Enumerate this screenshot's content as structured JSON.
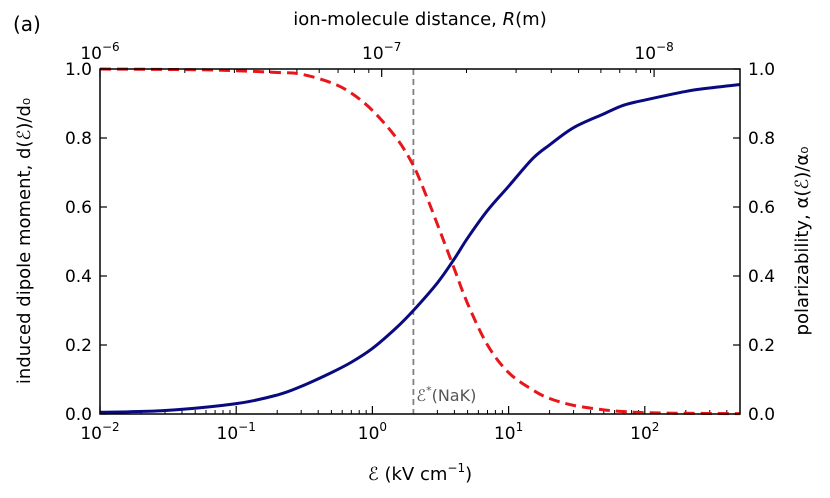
{
  "chart_data": {
    "type": "line",
    "panel_label": "(a)",
    "xscale": "log",
    "xlim": [
      0.01,
      500
    ],
    "xlabel_main": "ℰ",
    "xlabel_unit": " (kV cm",
    "xlabel_sup": "−1",
    "xlabel_close": ")",
    "top_xlabel_main": "ion-molecule distance, ",
    "top_xlabel_var": "R",
    "top_xlabel_unit": "(m)",
    "ylabel_left": "induced dipole moment, d(ℰ)/d₀",
    "ylabel_right": "polarizability, α(ℰ)/α₀",
    "ylim": [
      0.0,
      1.0
    ],
    "yticks": [
      "0.0",
      "0.2",
      "0.4",
      "0.6",
      "0.8",
      "1.0"
    ],
    "xticks": [
      {
        "base": "10",
        "exp": "−2",
        "value": 0.01
      },
      {
        "base": "10",
        "exp": "−1",
        "value": 0.1
      },
      {
        "base": "10",
        "exp": "0",
        "value": 1
      },
      {
        "base": "10",
        "exp": "1",
        "value": 10
      },
      {
        "base": "10",
        "exp": "2",
        "value": 100
      }
    ],
    "top_xticks": [
      {
        "base": "10",
        "exp": "−6",
        "value": 0.01
      },
      {
        "base": "10",
        "exp": "−7",
        "value": 1.17
      },
      {
        "base": "10",
        "exp": "−8",
        "value": 117
      }
    ],
    "characteristic_field": 2.0,
    "annotation_main": "ℰ",
    "annotation_sup": "*",
    "annotation_rest": "(NaK)",
    "series": [
      {
        "name": "induced dipole moment",
        "axis": "left",
        "style": "solid",
        "color": "#0a0a80",
        "x": [
          0.01,
          0.03,
          0.1,
          0.2,
          0.3,
          0.5,
          0.7,
          1.0,
          1.5,
          2.0,
          3.0,
          4.0,
          5.0,
          7.0,
          10,
          15,
          20,
          30,
          50,
          70,
          100,
          200,
          300,
          500
        ],
        "y": [
          0.005,
          0.01,
          0.03,
          0.055,
          0.08,
          0.12,
          0.15,
          0.19,
          0.25,
          0.3,
          0.38,
          0.45,
          0.51,
          0.59,
          0.66,
          0.74,
          0.78,
          0.83,
          0.87,
          0.895,
          0.91,
          0.935,
          0.945,
          0.955
        ]
      },
      {
        "name": "polarizability",
        "axis": "right",
        "style": "dashed",
        "color": "#e8161b",
        "x": [
          0.01,
          0.05,
          0.1,
          0.2,
          0.3,
          0.5,
          0.7,
          1.0,
          1.5,
          2.0,
          2.5,
          3.0,
          4.0,
          5.0,
          7.0,
          10,
          15,
          20,
          30,
          50,
          70,
          100,
          200,
          500
        ],
        "y": [
          1.0,
          0.998,
          0.995,
          0.99,
          0.985,
          0.96,
          0.93,
          0.88,
          0.8,
          0.72,
          0.63,
          0.55,
          0.42,
          0.32,
          0.2,
          0.12,
          0.07,
          0.045,
          0.025,
          0.012,
          0.007,
          0.004,
          0.002,
          0.001
        ]
      }
    ]
  }
}
